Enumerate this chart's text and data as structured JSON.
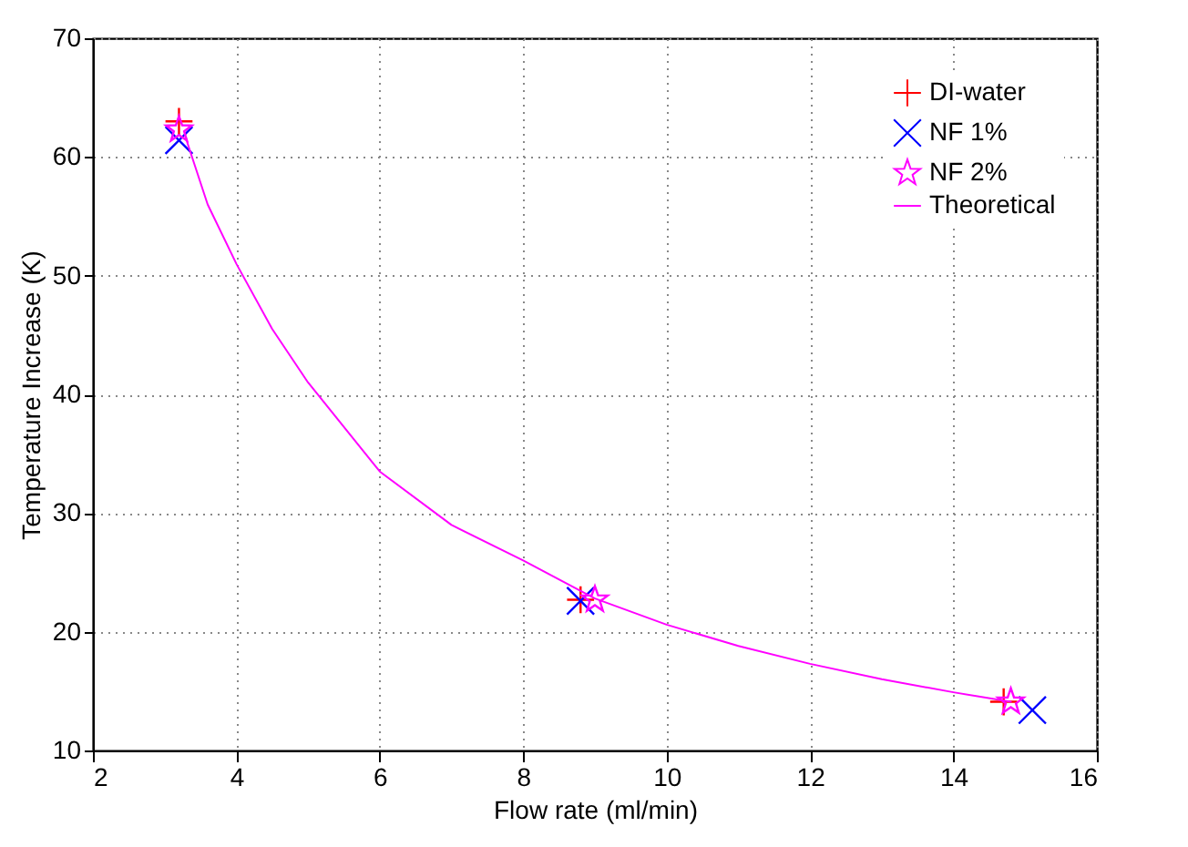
{
  "chart_data": {
    "type": "scatter",
    "xlabel": "Flow rate (ml/min)",
    "ylabel": "Temperature Increase (K)",
    "xlim": [
      2,
      16
    ],
    "xticks": [
      2,
      4,
      6,
      8,
      10,
      12,
      14,
      16
    ],
    "ylim": [
      10,
      70
    ],
    "yticks": [
      10,
      20,
      30,
      40,
      50,
      60,
      70
    ],
    "grid": true,
    "legend": "top right",
    "series": [
      {
        "name": "DI-water",
        "type": "scatter",
        "marker": "cross",
        "color": "#ff0000",
        "x": [
          3.2,
          8.8,
          14.7
        ],
        "values": [
          63,
          22.7,
          14.1
        ]
      },
      {
        "name": "NF 1%",
        "type": "scatter",
        "marker": "x",
        "color": "#0000ff",
        "x": [
          3.2,
          8.8,
          15.1
        ],
        "values": [
          61.4,
          22.6,
          13.4
        ]
      },
      {
        "name": "NF 2%",
        "type": "scatter",
        "marker": "star",
        "color": "#ff00ff",
        "x": [
          3.2,
          9.0,
          14.8
        ],
        "values": [
          62.3,
          22.7,
          14.1
        ]
      },
      {
        "name": "Theoretical",
        "type": "line",
        "marker": "none",
        "line_style": "solid",
        "color": "#ff00ff",
        "x": [
          3.3,
          3.6,
          4,
          4.5,
          5,
          6,
          7,
          8,
          9,
          10,
          11,
          12,
          13,
          14,
          14.8
        ],
        "values": [
          61.5,
          56,
          51,
          45.5,
          41,
          33.5,
          29,
          26,
          22.8,
          20.6,
          18.8,
          17.3,
          16,
          14.9,
          14.1
        ]
      }
    ]
  }
}
